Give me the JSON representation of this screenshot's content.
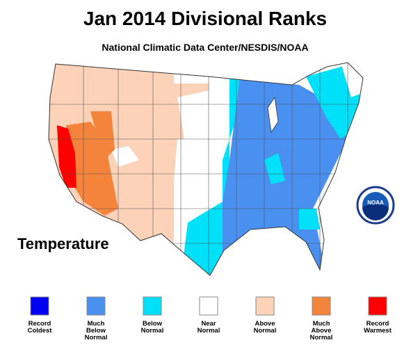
{
  "title": "Jan 2014 Divisional Ranks",
  "subtitle": "National Climatic Data Center/NESDIS/NOAA",
  "map_label": "Temperature",
  "logo_text": "NOAA",
  "legend": [
    {
      "color": "#0000f0",
      "lines": [
        "Record",
        "Coldest"
      ]
    },
    {
      "color": "#4a90f0",
      "lines": [
        "Much",
        "Below",
        "Normal"
      ]
    },
    {
      "color": "#00e0f8",
      "lines": [
        "Below",
        "Normal"
      ]
    },
    {
      "color": "#ffffff",
      "lines": [
        "Near",
        "Normal"
      ]
    },
    {
      "color": "#fcd2b8",
      "lines": [
        "Above",
        "Normal"
      ]
    },
    {
      "color": "#f4843c",
      "lines": [
        "Much",
        "Above",
        "Normal"
      ]
    },
    {
      "color": "#ff0000",
      "lines": [
        "Record",
        "Warmest"
      ]
    }
  ]
}
